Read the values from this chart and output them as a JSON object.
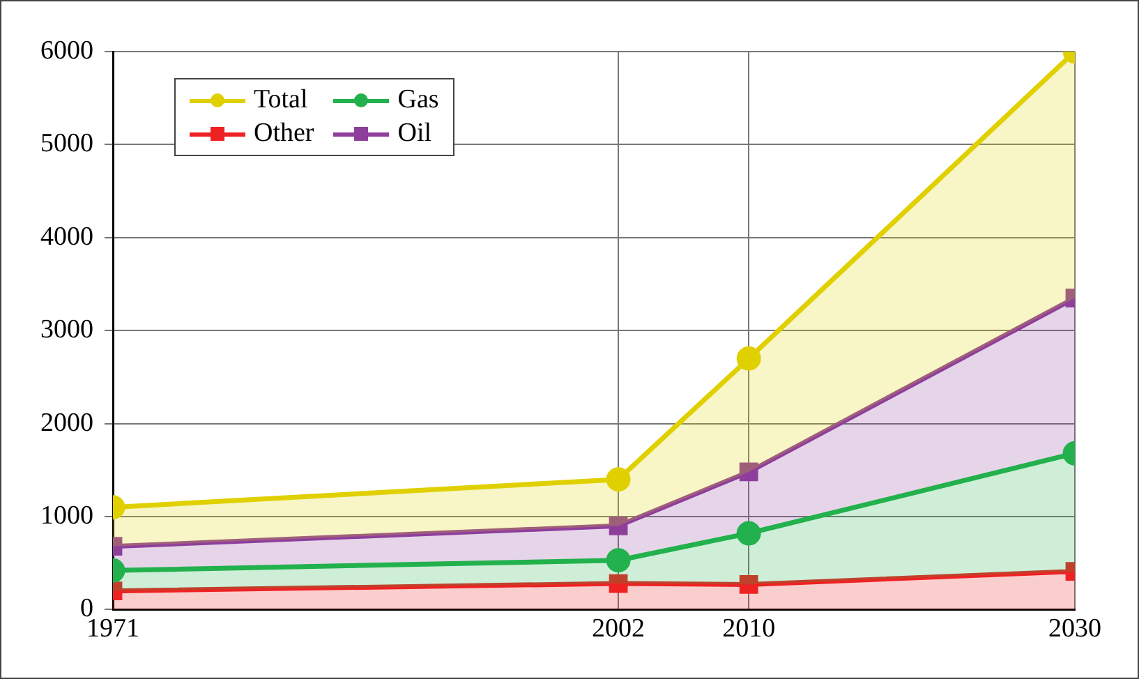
{
  "chart_data": {
    "type": "area",
    "x": [
      1971,
      2002,
      2010,
      2030
    ],
    "series": [
      {
        "name": "Total",
        "color": "#e0d000",
        "marker": "circle",
        "values": [
          1100,
          1400,
          2700,
          6000
        ]
      },
      {
        "name": "Gas",
        "color": "#22b14c",
        "marker": "circle",
        "values": [
          420,
          530,
          820,
          1680
        ]
      },
      {
        "name": "Other",
        "color": "#ee2222",
        "marker": "square",
        "values": [
          200,
          280,
          270,
          410
        ]
      },
      {
        "name": "Oil",
        "color": "#8e3f9c",
        "marker": "square",
        "values": [
          680,
          900,
          1480,
          3350
        ]
      }
    ],
    "xlim": [
      1971,
      2030
    ],
    "xticks": [
      1971,
      2002,
      2010,
      2030
    ],
    "ylim": [
      0,
      6000
    ],
    "yticks": [
      0,
      1000,
      2000,
      3000,
      4000,
      5000,
      6000
    ],
    "grid": true,
    "legend": "top left",
    "line_style": "solid"
  }
}
